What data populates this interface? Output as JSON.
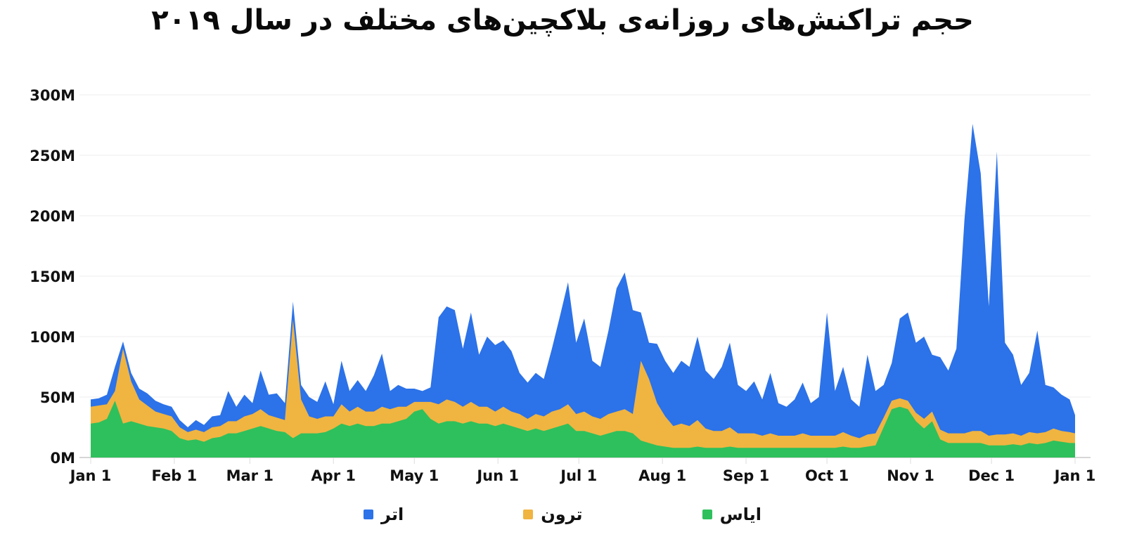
{
  "title": "حجم تراکنش‌های روزانه‌ی بلاکچین‌های مختلف در سال ۲۰۱۹",
  "legend": {
    "position": "bottom",
    "items": [
      {
        "label": "اتر",
        "color": "#2C72E8"
      },
      {
        "label": "ترون",
        "color": "#F0B441"
      },
      {
        "label": "ایاس",
        "color": "#2EC05C"
      }
    ]
  },
  "chart_data": {
    "type": "area",
    "stacked": true,
    "title": "حجم تراکنش‌های روزانه‌ی بلاکچین‌های مختلف در سال ۲۰۱۹",
    "unit": "M",
    "ylim": [
      0,
      300
    ],
    "grid": "horizontal",
    "x_range_days": [
      0,
      365
    ],
    "sample_step_days": 3,
    "y_ticks": [
      {
        "label": "0M",
        "value": 0
      },
      {
        "label": "50M",
        "value": 50
      },
      {
        "label": "100M",
        "value": 100
      },
      {
        "label": "150M",
        "value": 150
      },
      {
        "label": "200M",
        "value": 200
      },
      {
        "label": "250M",
        "value": 250
      },
      {
        "label": "300M",
        "value": 300
      }
    ],
    "x_ticks": [
      {
        "label": "Jan 1",
        "day": 0
      },
      {
        "label": "Feb 1",
        "day": 31
      },
      {
        "label": "Mar 1",
        "day": 59
      },
      {
        "label": "Apr 1",
        "day": 90
      },
      {
        "label": "May 1",
        "day": 120
      },
      {
        "label": "Jun 1",
        "day": 151
      },
      {
        "label": "Jul 1",
        "day": 181
      },
      {
        "label": "Aug 1",
        "day": 212
      },
      {
        "label": "Sep 1",
        "day": 243
      },
      {
        "label": "Oct 1",
        "day": 273
      },
      {
        "label": "Nov 1",
        "day": 304
      },
      {
        "label": "Dec 1",
        "day": 334
      },
      {
        "label": "Jan 1",
        "day": 365
      }
    ],
    "series": [
      {
        "name": "ایاس",
        "stack_position": "bottom",
        "color": "#2EC05C",
        "values": [
          28,
          29,
          32,
          47,
          28,
          30,
          28,
          26,
          25,
          24,
          22,
          16,
          14,
          15,
          13,
          16,
          17,
          20,
          20,
          22,
          24,
          26,
          24,
          22,
          21,
          16,
          20,
          20,
          20,
          21,
          24,
          28,
          26,
          28,
          26,
          26,
          28,
          28,
          30,
          32,
          38,
          40,
          32,
          28,
          30,
          30,
          28,
          30,
          28,
          28,
          26,
          28,
          26,
          24,
          22,
          24,
          22,
          24,
          26,
          28,
          22,
          22,
          20,
          18,
          20,
          22,
          22,
          20,
          14,
          12,
          10,
          9,
          8,
          8,
          8,
          9,
          8,
          8,
          8,
          9,
          8,
          8,
          8,
          8,
          8,
          8,
          8,
          8,
          8,
          8,
          8,
          8,
          8,
          9,
          8,
          8,
          9,
          10,
          25,
          40,
          42,
          40,
          30,
          24,
          30,
          15,
          12,
          12,
          12,
          12,
          12,
          10,
          10,
          10,
          11,
          10,
          12,
          11,
          12,
          14,
          13,
          12,
          12
        ]
      },
      {
        "name": "ترون",
        "stack_position": "middle",
        "color": "#F0B441",
        "values": [
          14,
          14,
          12,
          8,
          62,
          33,
          20,
          17,
          13,
          12,
          12,
          9,
          7,
          8,
          8,
          9,
          9,
          10,
          10,
          12,
          12,
          14,
          11,
          11,
          10,
          98,
          28,
          14,
          12,
          13,
          10,
          16,
          12,
          14,
          12,
          12,
          14,
          12,
          12,
          10,
          8,
          6,
          14,
          16,
          18,
          16,
          14,
          16,
          14,
          14,
          12,
          14,
          12,
          12,
          10,
          12,
          12,
          14,
          14,
          16,
          14,
          16,
          14,
          14,
          16,
          16,
          18,
          16,
          66,
          53,
          35,
          25,
          18,
          20,
          18,
          22,
          16,
          14,
          14,
          16,
          12,
          12,
          12,
          10,
          12,
          10,
          10,
          10,
          12,
          10,
          10,
          10,
          10,
          12,
          10,
          8,
          10,
          10,
          8,
          7,
          7,
          7,
          7,
          8,
          8,
          8,
          8,
          8,
          8,
          10,
          10,
          8,
          9,
          9,
          9,
          8,
          9,
          9,
          9,
          10,
          9,
          9,
          8
        ]
      },
      {
        "name": "اتر",
        "stack_position": "top",
        "color": "#2C72E8",
        "values": [
          6,
          6,
          8,
          20,
          6,
          7,
          9,
          10,
          9,
          8,
          8,
          6,
          4,
          8,
          6,
          9,
          9,
          25,
          12,
          18,
          9,
          32,
          17,
          20,
          14,
          15,
          12,
          16,
          14,
          29,
          10,
          36,
          17,
          22,
          17,
          30,
          44,
          15,
          18,
          15,
          11,
          9,
          12,
          72,
          77,
          76,
          48,
          74,
          43,
          58,
          55,
          55,
          50,
          34,
          30,
          34,
          31,
          52,
          77,
          101,
          59,
          77,
          46,
          43,
          69,
          102,
          113,
          86,
          40,
          30,
          49,
          46,
          44,
          52,
          49,
          69,
          48,
          43,
          53,
          70,
          40,
          35,
          43,
          30,
          50,
          27,
          24,
          30,
          42,
          27,
          32,
          102,
          37,
          54,
          30,
          26,
          66,
          35,
          27,
          31,
          66,
          73,
          58,
          68,
          47,
          60,
          52,
          70,
          177,
          254,
          213,
          107,
          234,
          76,
          65,
          42,
          49,
          85,
          39,
          34,
          30,
          27,
          15
        ]
      }
    ]
  }
}
